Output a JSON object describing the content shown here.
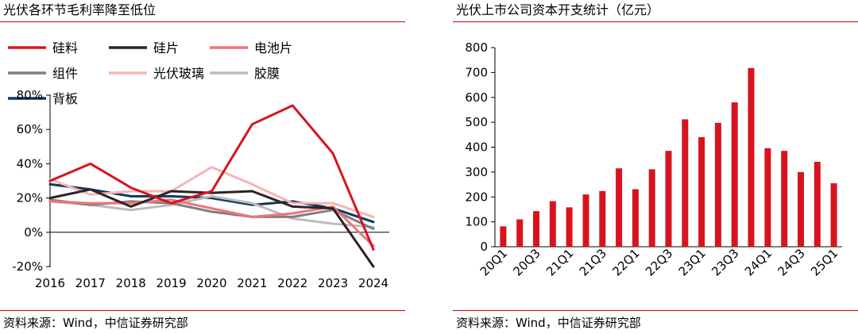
{
  "left": {
    "title": "光伏各环节毛利率降至低位",
    "source": "资料来源：Wind，中信证券研究部"
  },
  "right": {
    "title": "光伏上市公司资本开支统计（亿元）",
    "source": "资料来源：Wind，中信证券研究部"
  },
  "chart_data": [
    {
      "type": "line",
      "title": "光伏各环节毛利率降至低位",
      "x": [
        "2016",
        "2017",
        "2018",
        "2019",
        "2020",
        "2021",
        "2022",
        "2023",
        "2024"
      ],
      "ylim": [
        -20,
        80
      ],
      "yticks": [
        "-20%",
        "0%",
        "20%",
        "40%",
        "60%",
        "80%"
      ],
      "ytick_values": [
        -20,
        0,
        20,
        40,
        60,
        80
      ],
      "grid": false,
      "legend": "top",
      "series": [
        {
          "name": "硅料",
          "color": "#d7141e",
          "values": [
            30,
            40,
            26,
            17,
            24,
            63,
            74,
            46,
            -10
          ]
        },
        {
          "name": "硅片",
          "color": "#2b2324",
          "values": [
            20,
            25,
            15,
            24,
            23,
            24,
            15,
            14,
            -20
          ]
        },
        {
          "name": "电池片",
          "color": "#f2737a",
          "values": [
            18,
            17,
            17,
            19,
            14,
            9,
            11,
            15,
            -8
          ]
        },
        {
          "name": "组件",
          "color": "#7f7f7f",
          "values": [
            19,
            16,
            18,
            17,
            12,
            9,
            9,
            13,
            2
          ]
        },
        {
          "name": "光伏玻璃",
          "color": "#f6b4b6",
          "values": [
            31,
            22,
            24,
            24,
            38,
            28,
            17,
            17,
            9
          ]
        },
        {
          "name": "胶膜",
          "color": "#bcbcbc",
          "values": [
            18,
            16,
            13,
            16,
            21,
            17,
            8,
            5,
            3
          ]
        },
        {
          "name": "背板",
          "color": "#14375e",
          "values": [
            28,
            25,
            21,
            21,
            20,
            16,
            18,
            14,
            6
          ]
        }
      ]
    },
    {
      "type": "bar",
      "title": "光伏上市公司资本开支统计（亿元）",
      "categories": [
        "20Q1",
        "20Q2",
        "20Q3",
        "20Q4",
        "21Q1",
        "21Q2",
        "21Q3",
        "21Q4",
        "22Q1",
        "22Q2",
        "22Q3",
        "22Q4",
        "23Q1",
        "23Q2",
        "23Q3",
        "23Q4",
        "24Q1",
        "24Q2",
        "24Q3",
        "24Q4",
        "25Q1"
      ],
      "xticks_shown": [
        "20Q1",
        "20Q3",
        "21Q1",
        "21Q3",
        "22Q1",
        "22Q3",
        "23Q1",
        "23Q3",
        "24Q1",
        "24Q3",
        "25Q1"
      ],
      "values": [
        82,
        110,
        143,
        183,
        158,
        210,
        224,
        315,
        231,
        311,
        385,
        512,
        440,
        498,
        580,
        718,
        396,
        385,
        300,
        341,
        255
      ],
      "ylim": [
        0,
        800
      ],
      "yticks": [
        0,
        100,
        200,
        300,
        400,
        500,
        600,
        700,
        800
      ],
      "color": "#d7141e",
      "grid": false
    }
  ]
}
